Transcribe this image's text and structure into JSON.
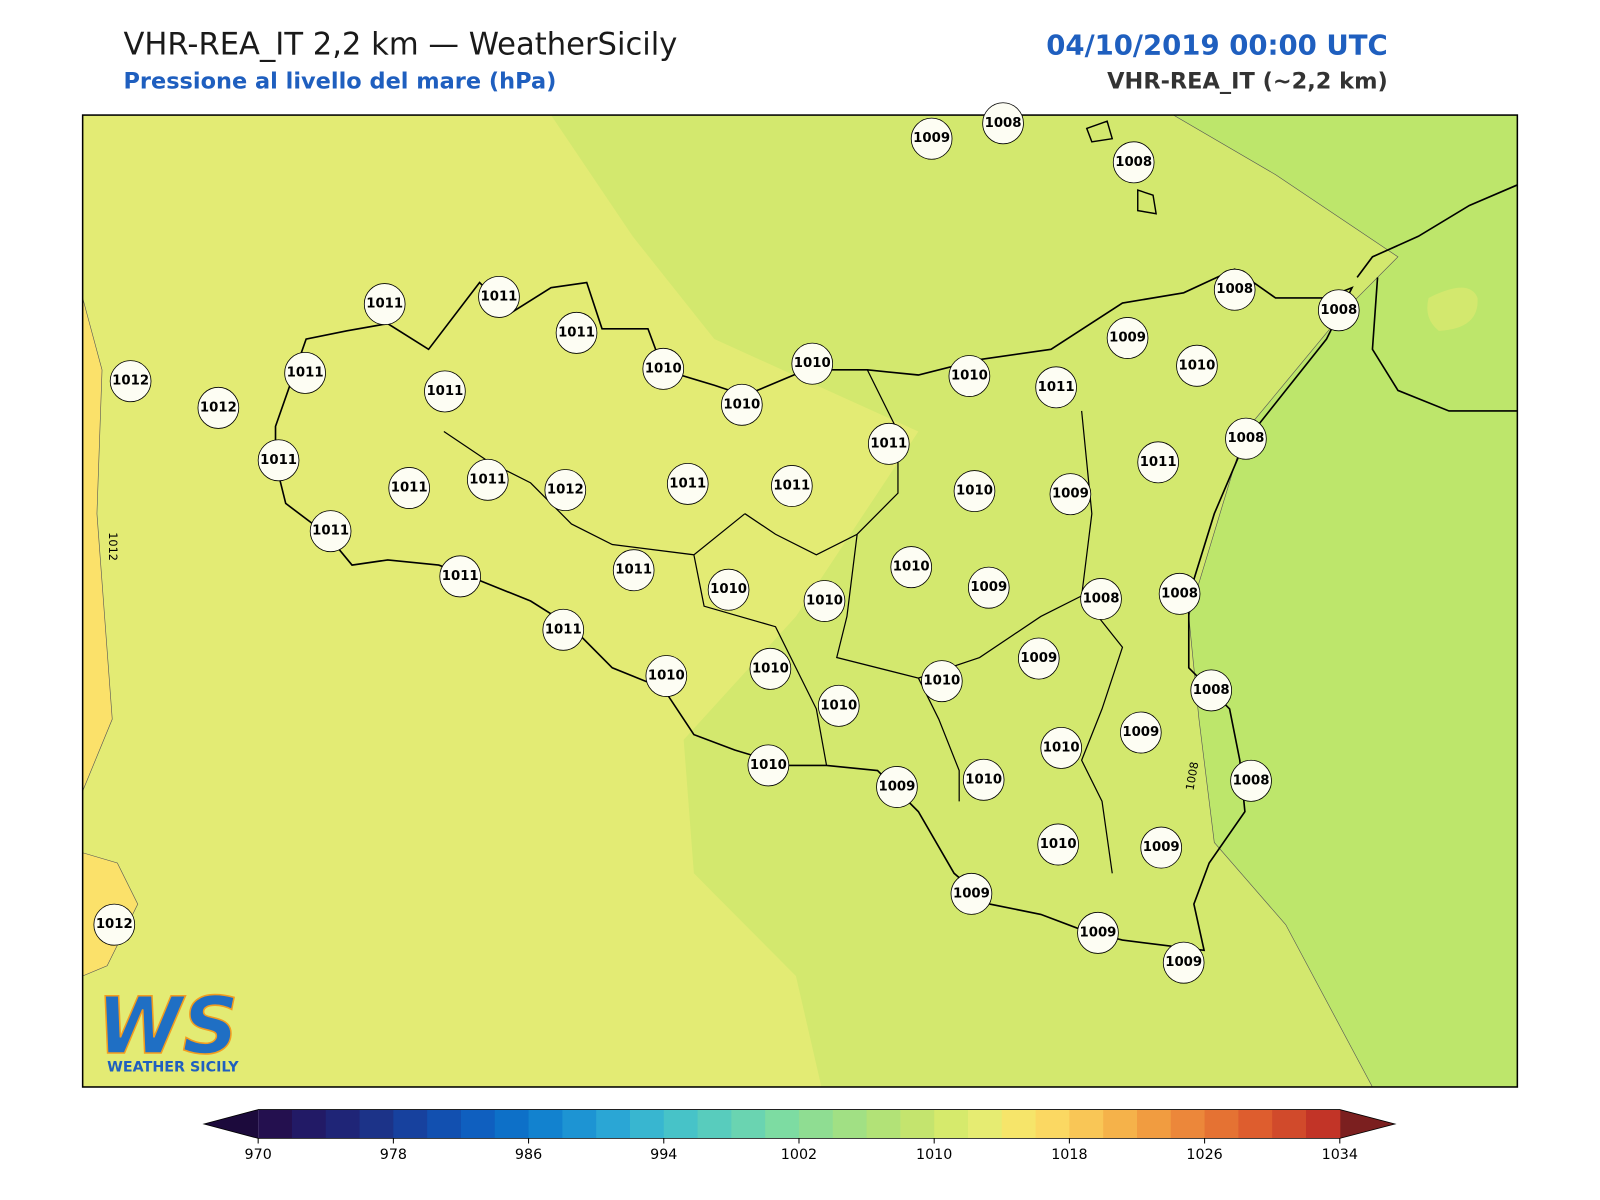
{
  "header": {
    "title": "VHR-REA_IT 2,2 km — WeatherSicily",
    "subtitle": "Pressione al livello del mare (hPa)",
    "datetime": "04/10/2019 00:00 UTC",
    "model": "VHR-REA_IT (~2,2 km)"
  },
  "map": {
    "station_values": [
      1009,
      1008,
      1008,
      1011,
      1011,
      1011,
      1012,
      1012,
      1011,
      1011,
      1010,
      1010,
      1010,
      1010,
      1011,
      1009,
      1010,
      1008,
      1008,
      1008,
      1011,
      1011,
      1011,
      1011,
      1011,
      1012,
      1011,
      1011,
      1010,
      1009,
      1011,
      1011,
      1011,
      1010,
      1010,
      1010,
      1009,
      1008,
      1008,
      1011,
      1010,
      1010,
      1010,
      1010,
      1009,
      1008,
      1010,
      1009,
      1010,
      1009,
      1010,
      1008,
      1010,
      1009,
      1012,
      1009,
      1009,
      1009
    ],
    "contour_labels": [
      "1012",
      "1008"
    ],
    "logo": {
      "initials": "WS",
      "name": "WEATHER SICILY"
    }
  },
  "colorbar": {
    "lim": [
      970,
      1034
    ],
    "ticks": [
      970,
      978,
      986,
      994,
      1002,
      1010,
      1018,
      1026,
      1034
    ],
    "colors": [
      "#24104f",
      "#221a66",
      "#1f2577",
      "#1c3388",
      "#17419e",
      "#1250b0",
      "#0f5fbf",
      "#0d70c8",
      "#1282cf",
      "#1d94d3",
      "#2aa6d5",
      "#38b6d0",
      "#47c3c8",
      "#58ccbd",
      "#6ad4b1",
      "#7ddca2",
      "#8fdd92",
      "#a1e084",
      "#b2e277",
      "#c4e46e",
      "#d6ea6c",
      "#e6ec72",
      "#f6e56a",
      "#fbd862",
      "#f9c656",
      "#f5b24a",
      "#f19c40",
      "#ec873a",
      "#e57233",
      "#de5d2e",
      "#d14a2b",
      "#c23427"
    ],
    "under_color": "#1c0a3c",
    "over_color": "#7b1f1f"
  }
}
